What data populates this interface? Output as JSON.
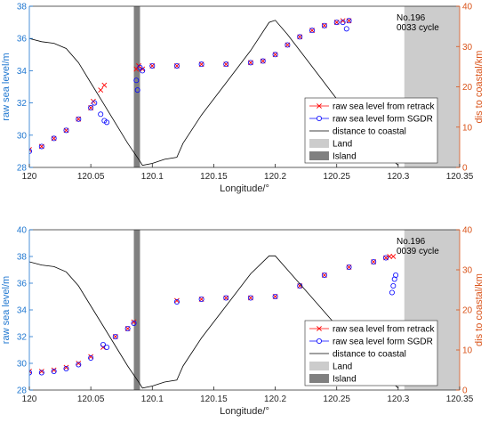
{
  "colors": {
    "left_axis": "#1f77d0",
    "right_axis": "#d95319",
    "retrack": "#ff0000",
    "sgdr": "#0000ff",
    "distance": "#000000",
    "land": "#cccccc",
    "island": "#808080"
  },
  "chart_data": [
    {
      "type": "line",
      "annotation": [
        "No.196",
        "0033 cycle"
      ],
      "xlabel": "Longitude/°",
      "ylabel": "raw sea level/m",
      "y2label": "dis to coastal/km",
      "xlim": [
        120,
        120.35
      ],
      "ylim": [
        28,
        38
      ],
      "y2lim": [
        0,
        40
      ],
      "xticks": [
        "120",
        "120.05",
        "120.1",
        "120.15",
        "120.2",
        "120.25",
        "120.3",
        "120.35"
      ],
      "yticks": [
        "28",
        "30",
        "32",
        "34",
        "36",
        "38"
      ],
      "y2ticks": [
        "0",
        "10",
        "20",
        "30",
        "40"
      ],
      "legend_position": "bottom-right",
      "legend": [
        "raw sea level from retrack",
        "raw sea level form SGDR",
        "distance to coastal",
        "Land",
        "Island"
      ],
      "land_x": [
        120.305,
        120.35
      ],
      "island_x": [
        120.085,
        120.09
      ],
      "series": [
        {
          "name": "raw sea level from retrack",
          "axis": "left",
          "marker": "x",
          "x": [
            120.0,
            120.01,
            120.02,
            120.03,
            120.04,
            120.05,
            120.052,
            120.058,
            120.061,
            120.087,
            120.089,
            120.092,
            120.1,
            120.12,
            120.14,
            120.16,
            120.18,
            120.19,
            120.2,
            120.21,
            120.22,
            120.23,
            120.24,
            120.25,
            120.255,
            120.26
          ],
          "y": [
            29.1,
            29.3,
            29.8,
            30.3,
            31.0,
            31.7,
            32.1,
            32.8,
            33.1,
            34.1,
            34.3,
            34.1,
            34.3,
            34.3,
            34.4,
            34.4,
            34.5,
            34.6,
            35.0,
            35.6,
            36.1,
            36.5,
            36.8,
            37.0,
            37.1,
            37.1
          ]
        },
        {
          "name": "raw sea level form SGDR",
          "axis": "left",
          "marker": "o",
          "x": [
            120.0,
            120.01,
            120.02,
            120.03,
            120.04,
            120.05,
            120.053,
            120.058,
            120.061,
            120.063,
            120.087,
            120.088,
            120.09,
            120.092,
            120.1,
            120.12,
            120.14,
            120.16,
            120.18,
            120.19,
            120.2,
            120.21,
            120.22,
            120.23,
            120.24,
            120.25,
            120.255,
            120.258,
            120.26
          ],
          "y": [
            29.0,
            29.3,
            29.8,
            30.3,
            31.0,
            31.7,
            32.0,
            31.3,
            30.9,
            30.8,
            33.4,
            32.8,
            34.2,
            34.0,
            34.3,
            34.3,
            34.4,
            34.4,
            34.5,
            34.6,
            35.0,
            35.6,
            36.1,
            36.5,
            36.8,
            37.0,
            37.0,
            36.6,
            37.1
          ]
        },
        {
          "name": "distance to coastal",
          "axis": "right",
          "marker": "none",
          "x": [
            120.0,
            120.01,
            120.02,
            120.03,
            120.04,
            120.05,
            120.06,
            120.07,
            120.08,
            120.09,
            120.092,
            120.1,
            120.11,
            120.12,
            120.125,
            120.14,
            120.16,
            120.18,
            120.195,
            120.2,
            120.21,
            120.23,
            120.25,
            120.27,
            120.29,
            120.3
          ],
          "y": [
            32,
            31.2,
            30.8,
            29.5,
            26,
            21,
            16,
            11,
            6,
            1.5,
            0.5,
            1,
            2,
            2.5,
            6,
            13,
            21,
            29,
            36,
            36.5,
            33,
            25,
            17,
            10,
            3.5,
            0.5
          ]
        }
      ]
    },
    {
      "type": "line",
      "annotation": [
        "No.196",
        "0039 cycle"
      ],
      "xlabel": "Longitude/°",
      "ylabel": "raw sea level/m",
      "y2label": "dis to coastal/km",
      "xlim": [
        120,
        120.35
      ],
      "ylim": [
        28,
        40
      ],
      "y2lim": [
        0,
        40
      ],
      "xticks": [
        "120",
        "120.05",
        "120.1",
        "120.15",
        "120.2",
        "120.25",
        "120.3",
        "120.35"
      ],
      "yticks": [
        "28",
        "30",
        "32",
        "34",
        "36",
        "38",
        "40"
      ],
      "y2ticks": [
        "0",
        "10",
        "20",
        "30",
        "40"
      ],
      "legend_position": "bottom-right",
      "legend": [
        "raw sea level from retrack",
        "raw sea level form SGDR",
        "distance to coastal",
        "Land",
        "Island"
      ],
      "land_x": [
        120.305,
        120.35
      ],
      "island_x": [
        120.085,
        120.09
      ],
      "series": [
        {
          "name": "raw sea level from retrack",
          "axis": "left",
          "marker": "x",
          "x": [
            120.0,
            120.01,
            120.02,
            120.03,
            120.04,
            120.05,
            120.06,
            120.07,
            120.08,
            120.085,
            120.12,
            120.14,
            120.16,
            120.18,
            120.2,
            120.22,
            120.24,
            120.26,
            120.28,
            120.29,
            120.293,
            120.296
          ],
          "y": [
            29.4,
            29.4,
            29.5,
            29.7,
            30.0,
            30.5,
            31.2,
            32.0,
            32.6,
            33.1,
            34.7,
            34.8,
            34.9,
            34.9,
            35.0,
            35.8,
            36.6,
            37.2,
            37.6,
            37.9,
            38.0,
            38.0
          ]
        },
        {
          "name": "raw sea level form SGDR",
          "axis": "left",
          "marker": "o",
          "x": [
            120.0,
            120.01,
            120.02,
            120.03,
            120.04,
            120.05,
            120.06,
            120.063,
            120.07,
            120.08,
            120.085,
            120.12,
            120.14,
            120.16,
            120.18,
            120.2,
            120.22,
            120.24,
            120.26,
            120.28,
            120.29,
            120.295,
            120.296,
            120.297,
            120.298
          ],
          "y": [
            29.3,
            29.3,
            29.4,
            29.6,
            29.9,
            30.4,
            31.4,
            31.2,
            32.0,
            32.6,
            33.0,
            34.6,
            34.8,
            34.9,
            34.9,
            35.0,
            35.8,
            36.6,
            37.2,
            37.6,
            37.9,
            35.3,
            35.8,
            36.3,
            36.6
          ]
        },
        {
          "name": "distance to coastal",
          "axis": "right",
          "marker": "none",
          "x": [
            120.0,
            120.01,
            120.02,
            120.03,
            120.04,
            120.05,
            120.06,
            120.07,
            120.08,
            120.09,
            120.092,
            120.1,
            120.11,
            120.12,
            120.125,
            120.14,
            120.16,
            120.18,
            120.195,
            120.2,
            120.21,
            120.23,
            120.25,
            120.27,
            120.29,
            120.3
          ],
          "y": [
            32,
            31.2,
            30.8,
            29.5,
            26,
            21,
            16,
            11,
            6,
            1.5,
            0.5,
            1,
            2,
            2.5,
            6,
            13,
            21,
            29,
            33.5,
            33.5,
            30,
            23,
            16,
            9.5,
            3.5,
            0.5
          ]
        }
      ]
    }
  ]
}
